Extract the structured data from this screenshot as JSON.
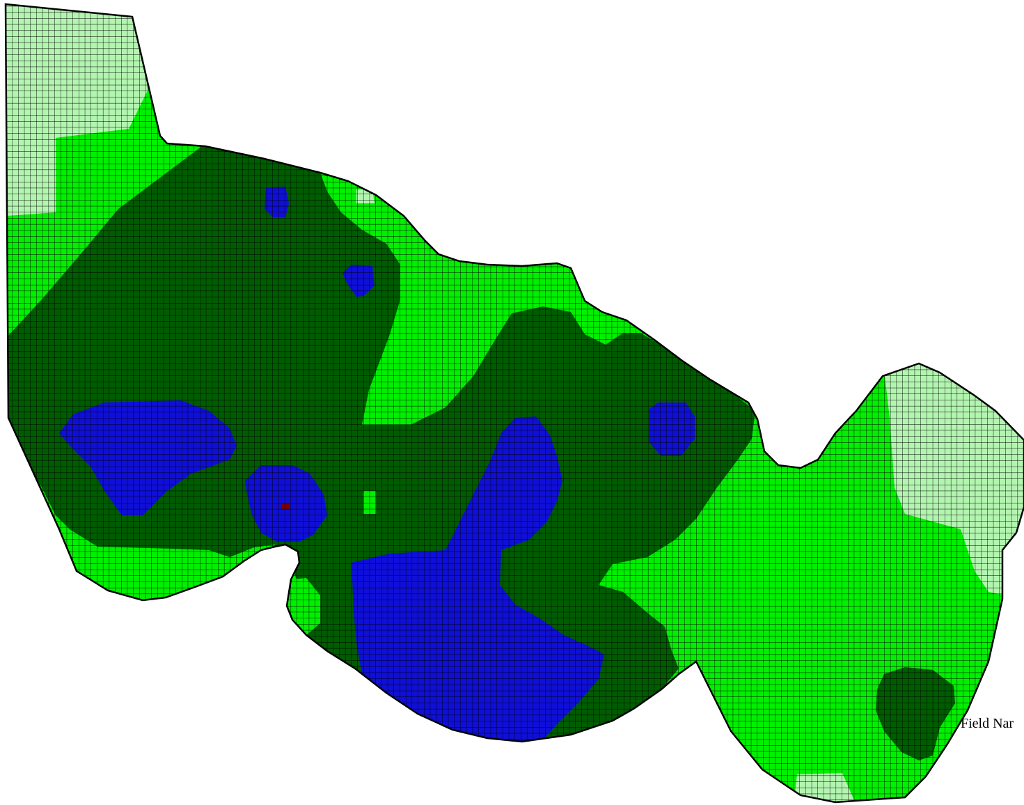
{
  "field_label": "Field Nar",
  "zone_colors": {
    "very_high": "#b3f5b0",
    "high": "#00f000",
    "medium": "#005c00",
    "low": "#0f0fd8",
    "very_low": "#7a0000"
  },
  "grid_line_color": "#000000",
  "boundary_color": "#000000",
  "background_color": "#ffffff"
}
